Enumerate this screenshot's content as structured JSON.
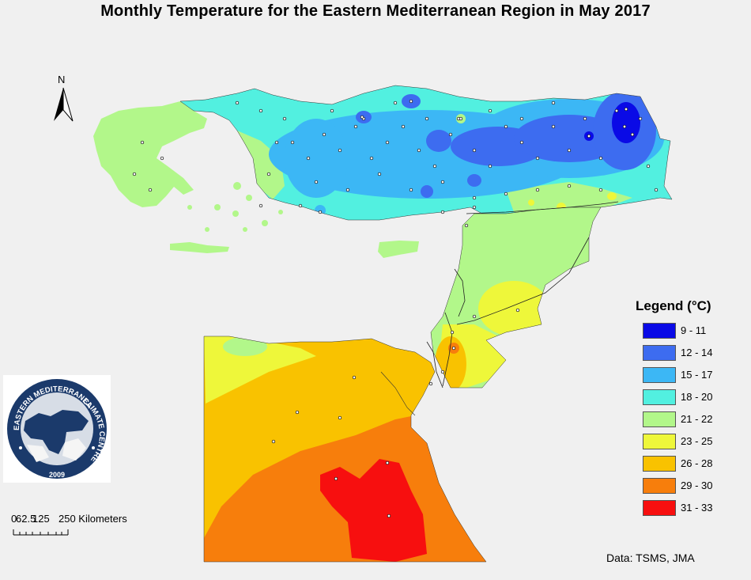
{
  "title": "Monthly Temperature for the Eastern Mediterranean Region in May 2017",
  "north_arrow": {
    "letter": "N"
  },
  "legend": {
    "title": "Legend (°C)",
    "items": [
      {
        "label": "9 - 11",
        "color": "#0a0ae6"
      },
      {
        "label": "12 - 14",
        "color": "#3d6cf0"
      },
      {
        "label": "15 - 17",
        "color": "#3cb7f5"
      },
      {
        "label": "18 - 20",
        "color": "#52f0e0"
      },
      {
        "label": "21 - 22",
        "color": "#b2f78a"
      },
      {
        "label": "23 - 25",
        "color": "#eef73a"
      },
      {
        "label": "26 - 28",
        "color": "#f9c200"
      },
      {
        "label": "29 - 30",
        "color": "#f77e0c"
      },
      {
        "label": "31 - 33",
        "color": "#f70f0f"
      }
    ]
  },
  "logo": {
    "text_top": "EASTERN MEDITERRANEAN",
    "text_right": "CLIMATE CENTRE",
    "year": "2009",
    "colors": {
      "ring": "#1b3a6b",
      "inner": "#d7dde6",
      "land": "#1b3a6b"
    }
  },
  "scale_bar": {
    "ticks_label_a": "0",
    "ticks_label_b": "62.5",
    "ticks_label_c": "125",
    "ticks_label_d": "250 Kilometers"
  },
  "source": "Data:  TSMS, JMA"
}
